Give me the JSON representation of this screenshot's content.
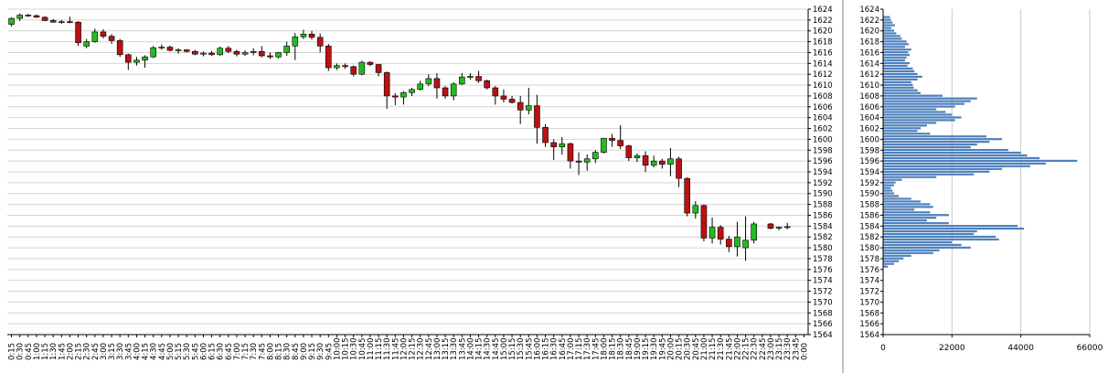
{
  "chart_data": [
    {
      "type": "candlestick",
      "price_axis": {
        "min": 1564,
        "max": 1624,
        "step": 2,
        "position": "right"
      },
      "time_labels": [
        "0:15",
        "0:30",
        "0:45",
        "1:00",
        "1:15",
        "1:30",
        "1:45",
        "2:00",
        "2:15",
        "2:30",
        "2:45",
        "3:00",
        "3:15",
        "3:30",
        "3:45",
        "4:00",
        "4:15",
        "4:30",
        "4:45",
        "5:00",
        "5:15",
        "5:30",
        "5:45",
        "6:00",
        "6:15",
        "6:30",
        "6:45",
        "7:00",
        "7:15",
        "7:30",
        "7:45",
        "8:00",
        "8:15",
        "8:30",
        "8:45",
        "9:00",
        "9:15",
        "9:30",
        "9:45",
        "10:00",
        "10:15",
        "10:30",
        "10:45",
        "11:00",
        "11:15",
        "11:30",
        "11:45",
        "12:00",
        "12:15",
        "12:30",
        "12:45",
        "13:00",
        "13:15",
        "13:30",
        "13:45",
        "14:00",
        "14:15",
        "14:30",
        "14:45",
        "15:00",
        "15:15",
        "15:30",
        "15:45",
        "16:00",
        "16:15",
        "16:30",
        "16:45",
        "17:00",
        "17:15",
        "17:30",
        "17:45",
        "18:00",
        "18:15",
        "18:30",
        "18:45",
        "19:00",
        "19:15",
        "19:30",
        "19:45",
        "20:00",
        "20:15",
        "20:30",
        "20:45",
        "21:00",
        "21:15",
        "21:30",
        "21:45",
        "22:00",
        "22:15",
        "22:30",
        "22:45",
        "23:00",
        "23:15",
        "23:30",
        "23:45",
        "0:00"
      ],
      "candles": [
        {
          "o": 1621.2,
          "h": 1622.5,
          "l": 1620.8,
          "c": 1622.3
        },
        {
          "o": 1622.3,
          "h": 1623.2,
          "l": 1621.8,
          "c": 1622.9
        },
        {
          "o": 1622.9,
          "h": 1623.1,
          "l": 1622.6,
          "c": 1622.8
        },
        {
          "o": 1622.8,
          "h": 1623.0,
          "l": 1622.4,
          "c": 1622.5
        },
        {
          "o": 1622.5,
          "h": 1622.7,
          "l": 1621.8,
          "c": 1621.9
        },
        {
          "o": 1621.9,
          "h": 1622.2,
          "l": 1621.5,
          "c": 1621.6
        },
        {
          "o": 1621.6,
          "h": 1622.0,
          "l": 1621.3,
          "c": 1621.7
        },
        {
          "o": 1621.7,
          "h": 1622.6,
          "l": 1621.4,
          "c": 1621.6
        },
        {
          "o": 1621.6,
          "h": 1621.8,
          "l": 1617.2,
          "c": 1617.8
        },
        {
          "o": 1617.2,
          "h": 1618.5,
          "l": 1616.8,
          "c": 1618.0
        },
        {
          "o": 1618.0,
          "h": 1620.4,
          "l": 1617.8,
          "c": 1619.8
        },
        {
          "o": 1619.8,
          "h": 1620.3,
          "l": 1618.6,
          "c": 1619.0
        },
        {
          "o": 1619.0,
          "h": 1619.4,
          "l": 1617.6,
          "c": 1618.2
        },
        {
          "o": 1618.2,
          "h": 1618.5,
          "l": 1615.2,
          "c": 1615.6
        },
        {
          "o": 1615.6,
          "h": 1615.8,
          "l": 1612.8,
          "c": 1614.2
        },
        {
          "o": 1614.2,
          "h": 1615.2,
          "l": 1613.6,
          "c": 1614.6
        },
        {
          "o": 1614.6,
          "h": 1615.5,
          "l": 1613.2,
          "c": 1615.2
        },
        {
          "o": 1615.2,
          "h": 1617.2,
          "l": 1615.0,
          "c": 1616.9
        },
        {
          "o": 1616.9,
          "h": 1617.5,
          "l": 1616.5,
          "c": 1617.0
        },
        {
          "o": 1617.0,
          "h": 1617.3,
          "l": 1616.2,
          "c": 1616.4
        },
        {
          "o": 1616.4,
          "h": 1616.8,
          "l": 1615.8,
          "c": 1616.5
        },
        {
          "o": 1616.5,
          "h": 1616.6,
          "l": 1616.0,
          "c": 1616.2
        },
        {
          "o": 1616.2,
          "h": 1616.5,
          "l": 1615.5,
          "c": 1615.7
        },
        {
          "o": 1615.7,
          "h": 1616.2,
          "l": 1615.3,
          "c": 1615.9
        },
        {
          "o": 1615.9,
          "h": 1616.3,
          "l": 1615.4,
          "c": 1615.6
        },
        {
          "o": 1615.6,
          "h": 1617.1,
          "l": 1615.4,
          "c": 1616.8
        },
        {
          "o": 1616.8,
          "h": 1617.2,
          "l": 1615.9,
          "c": 1616.2
        },
        {
          "o": 1616.2,
          "h": 1616.5,
          "l": 1615.3,
          "c": 1615.7
        },
        {
          "o": 1615.7,
          "h": 1616.4,
          "l": 1615.4,
          "c": 1616.0
        },
        {
          "o": 1616.0,
          "h": 1616.8,
          "l": 1615.5,
          "c": 1616.2
        },
        {
          "o": 1616.2,
          "h": 1617.2,
          "l": 1615.1,
          "c": 1615.4
        },
        {
          "o": 1615.4,
          "h": 1616.0,
          "l": 1614.8,
          "c": 1615.2
        },
        {
          "o": 1615.2,
          "h": 1616.1,
          "l": 1614.9,
          "c": 1616.0
        },
        {
          "o": 1616.0,
          "h": 1618.0,
          "l": 1615.4,
          "c": 1617.2
        },
        {
          "o": 1617.2,
          "h": 1619.6,
          "l": 1614.6,
          "c": 1618.9
        },
        {
          "o": 1618.9,
          "h": 1620.2,
          "l": 1618.5,
          "c": 1619.4
        },
        {
          "o": 1619.4,
          "h": 1620.0,
          "l": 1618.4,
          "c": 1618.8
        },
        {
          "o": 1618.8,
          "h": 1619.5,
          "l": 1616.0,
          "c": 1617.2
        },
        {
          "o": 1617.2,
          "h": 1617.6,
          "l": 1612.6,
          "c": 1613.2
        },
        {
          "o": 1613.2,
          "h": 1614.0,
          "l": 1612.8,
          "c": 1613.6
        },
        {
          "o": 1613.6,
          "h": 1614.0,
          "l": 1613.0,
          "c": 1613.4
        },
        {
          "o": 1613.4,
          "h": 1613.6,
          "l": 1611.6,
          "c": 1612.0
        },
        {
          "o": 1612.0,
          "h": 1614.5,
          "l": 1611.8,
          "c": 1614.2
        },
        {
          "o": 1614.2,
          "h": 1614.4,
          "l": 1613.5,
          "c": 1613.8
        },
        {
          "o": 1613.8,
          "h": 1613.9,
          "l": 1611.6,
          "c": 1612.3
        },
        {
          "o": 1612.3,
          "h": 1612.5,
          "l": 1605.6,
          "c": 1608.0
        },
        {
          "o": 1608.0,
          "h": 1608.5,
          "l": 1606.3,
          "c": 1607.8
        },
        {
          "o": 1607.8,
          "h": 1608.9,
          "l": 1606.4,
          "c": 1608.6
        },
        {
          "o": 1608.6,
          "h": 1609.5,
          "l": 1608.0,
          "c": 1609.2
        },
        {
          "o": 1609.2,
          "h": 1610.8,
          "l": 1609.0,
          "c": 1610.2
        },
        {
          "o": 1610.2,
          "h": 1612.0,
          "l": 1609.8,
          "c": 1611.2
        },
        {
          "o": 1611.2,
          "h": 1612.2,
          "l": 1607.5,
          "c": 1609.5
        },
        {
          "o": 1609.5,
          "h": 1609.8,
          "l": 1607.5,
          "c": 1608.0
        },
        {
          "o": 1608.0,
          "h": 1610.5,
          "l": 1607.2,
          "c": 1610.2
        },
        {
          "o": 1610.2,
          "h": 1612.2,
          "l": 1610.0,
          "c": 1611.5
        },
        {
          "o": 1611.5,
          "h": 1612.2,
          "l": 1611.0,
          "c": 1611.6
        },
        {
          "o": 1611.6,
          "h": 1612.6,
          "l": 1610.4,
          "c": 1610.8
        },
        {
          "o": 1610.8,
          "h": 1611.0,
          "l": 1609.2,
          "c": 1609.5
        },
        {
          "o": 1609.5,
          "h": 1609.8,
          "l": 1606.4,
          "c": 1608.0
        },
        {
          "o": 1608.0,
          "h": 1609.2,
          "l": 1606.8,
          "c": 1607.4
        },
        {
          "o": 1607.4,
          "h": 1608.0,
          "l": 1606.6,
          "c": 1606.8
        },
        {
          "o": 1606.8,
          "h": 1608.0,
          "l": 1602.8,
          "c": 1605.4
        },
        {
          "o": 1605.4,
          "h": 1609.5,
          "l": 1604.6,
          "c": 1606.2
        },
        {
          "o": 1606.2,
          "h": 1608.2,
          "l": 1599.2,
          "c": 1602.2
        },
        {
          "o": 1602.2,
          "h": 1602.8,
          "l": 1598.6,
          "c": 1599.4
        },
        {
          "o": 1599.4,
          "h": 1600.0,
          "l": 1596.2,
          "c": 1598.6
        },
        {
          "o": 1598.6,
          "h": 1600.4,
          "l": 1597.2,
          "c": 1599.2
        },
        {
          "o": 1599.2,
          "h": 1599.4,
          "l": 1594.6,
          "c": 1596.0
        },
        {
          "o": 1596.0,
          "h": 1597.6,
          "l": 1593.4,
          "c": 1595.8
        },
        {
          "o": 1595.8,
          "h": 1597.2,
          "l": 1594.2,
          "c": 1596.4
        },
        {
          "o": 1596.4,
          "h": 1598.0,
          "l": 1595.6,
          "c": 1597.6
        },
        {
          "o": 1597.6,
          "h": 1600.2,
          "l": 1597.4,
          "c": 1600.2
        },
        {
          "o": 1600.2,
          "h": 1601.0,
          "l": 1598.6,
          "c": 1599.8
        },
        {
          "o": 1599.8,
          "h": 1602.6,
          "l": 1598.2,
          "c": 1598.8
        },
        {
          "o": 1598.8,
          "h": 1599.0,
          "l": 1596.0,
          "c": 1596.6
        },
        {
          "o": 1596.6,
          "h": 1597.4,
          "l": 1595.8,
          "c": 1597.0
        },
        {
          "o": 1597.0,
          "h": 1597.8,
          "l": 1594.0,
          "c": 1595.2
        },
        {
          "o": 1595.2,
          "h": 1597.0,
          "l": 1594.8,
          "c": 1596.0
        },
        {
          "o": 1596.0,
          "h": 1596.4,
          "l": 1594.6,
          "c": 1595.4
        },
        {
          "o": 1595.4,
          "h": 1598.4,
          "l": 1593.2,
          "c": 1596.4
        },
        {
          "o": 1596.4,
          "h": 1596.8,
          "l": 1591.2,
          "c": 1592.8
        },
        {
          "o": 1592.8,
          "h": 1593.0,
          "l": 1585.8,
          "c": 1586.4
        },
        {
          "o": 1586.4,
          "h": 1588.6,
          "l": 1585.4,
          "c": 1587.8
        },
        {
          "o": 1587.8,
          "h": 1588.0,
          "l": 1581.2,
          "c": 1581.8
        },
        {
          "o": 1581.8,
          "h": 1585.6,
          "l": 1580.8,
          "c": 1583.8
        },
        {
          "o": 1583.8,
          "h": 1584.2,
          "l": 1580.6,
          "c": 1581.6
        },
        {
          "o": 1581.6,
          "h": 1582.2,
          "l": 1579.2,
          "c": 1580.2
        },
        {
          "o": 1580.2,
          "h": 1584.8,
          "l": 1578.4,
          "c": 1582.0
        },
        {
          "o": 1580.0,
          "h": 1585.8,
          "l": 1577.6,
          "c": 1581.4
        },
        {
          "o": 1581.4,
          "h": 1584.8,
          "l": 1580.8,
          "c": 1584.4
        },
        null,
        {
          "o": 1584.4,
          "h": 1584.6,
          "l": 1583.4,
          "c": 1583.6
        },
        {
          "o": 1583.6,
          "h": 1583.9,
          "l": 1583.2,
          "c": 1583.8
        },
        {
          "o": 1583.8,
          "h": 1584.6,
          "l": 1583.4,
          "c": 1583.9
        },
        null,
        null
      ],
      "volume": [
        0,
        0,
        0,
        0,
        0,
        0,
        0,
        0,
        0.35,
        0,
        0,
        0,
        0,
        0,
        0,
        0,
        0,
        0,
        0,
        0,
        0,
        0,
        0,
        0,
        0,
        0,
        0,
        0,
        0,
        0,
        0,
        0,
        0,
        0,
        0,
        0,
        0,
        0,
        0,
        0,
        0,
        0.3,
        0,
        0,
        0,
        0,
        0,
        0,
        0,
        0,
        0,
        0,
        0,
        0,
        0,
        0,
        0,
        0,
        0,
        0,
        0,
        0,
        0,
        0,
        0,
        0,
        0,
        0,
        0,
        0,
        0,
        0,
        0,
        0,
        0,
        0,
        0,
        0,
        0,
        0,
        0,
        0,
        0,
        0,
        0,
        0,
        0,
        0,
        0,
        0,
        0,
        0,
        0,
        0,
        0,
        0
      ],
      "colors": {
        "up": "#22bb22",
        "down": "#bb1111",
        "wick": "#000000",
        "volume": "#4f81bd",
        "grid": "#d4d4d4"
      }
    },
    {
      "type": "bar",
      "orientation": "horizontal",
      "title": "",
      "price_levels": {
        "min": 1564,
        "max": 1624,
        "step": 0.5
      },
      "x_ticks": [
        "0",
        "22000",
        "44000",
        "66000"
      ],
      "xlim": [
        0,
        66000
      ],
      "volume_profile": [
        [
          1622.5,
          2200
        ],
        [
          1622,
          2500
        ],
        [
          1621.5,
          3000
        ],
        [
          1621,
          3800
        ],
        [
          1620.5,
          2600
        ],
        [
          1620,
          3500
        ],
        [
          1619.5,
          4200
        ],
        [
          1619,
          5500
        ],
        [
          1618.5,
          6000
        ],
        [
          1618,
          7500
        ],
        [
          1617.5,
          8200
        ],
        [
          1617,
          7000
        ],
        [
          1616.5,
          9000
        ],
        [
          1616,
          8000
        ],
        [
          1615.5,
          8500
        ],
        [
          1615,
          7500
        ],
        [
          1614.5,
          7000
        ],
        [
          1614,
          8500
        ],
        [
          1613.5,
          7800
        ],
        [
          1613,
          9500
        ],
        [
          1612.5,
          10000
        ],
        [
          1612,
          11000
        ],
        [
          1611.5,
          12500
        ],
        [
          1611,
          11000
        ],
        [
          1610.5,
          9000
        ],
        [
          1610,
          9500
        ],
        [
          1609.5,
          9800
        ],
        [
          1609,
          11000
        ],
        [
          1608.5,
          12000
        ],
        [
          1608,
          19000
        ],
        [
          1607.5,
          30000
        ],
        [
          1607,
          28000
        ],
        [
          1606.5,
          26000
        ],
        [
          1606,
          23000
        ],
        [
          1605.5,
          17000
        ],
        [
          1605,
          20000
        ],
        [
          1604.5,
          22000
        ],
        [
          1604,
          25000
        ],
        [
          1603.5,
          23000
        ],
        [
          1603,
          17000
        ],
        [
          1602.5,
          14000
        ],
        [
          1602,
          12000
        ],
        [
          1601.5,
          11000
        ],
        [
          1601,
          15000
        ],
        [
          1600.5,
          33000
        ],
        [
          1600,
          38000
        ],
        [
          1599.5,
          34000
        ],
        [
          1599,
          30000
        ],
        [
          1598.5,
          28000
        ],
        [
          1598,
          40000
        ],
        [
          1597.5,
          44000
        ],
        [
          1597,
          46000
        ],
        [
          1596.5,
          50000
        ],
        [
          1596,
          62000
        ],
        [
          1595.5,
          52000
        ],
        [
          1595,
          47000
        ],
        [
          1594.5,
          38000
        ],
        [
          1594,
          34000
        ],
        [
          1593.5,
          29000
        ],
        [
          1593,
          17000
        ],
        [
          1592.5,
          6000
        ],
        [
          1592,
          4000
        ],
        [
          1591.5,
          3500
        ],
        [
          1591,
          2500
        ],
        [
          1590.5,
          3000
        ],
        [
          1590,
          3500
        ],
        [
          1589.5,
          5000
        ],
        [
          1589,
          9000
        ],
        [
          1588.5,
          12000
        ],
        [
          1588,
          15000
        ],
        [
          1587.5,
          16000
        ],
        [
          1587,
          10000
        ],
        [
          1586.5,
          15000
        ],
        [
          1586,
          21000
        ],
        [
          1585.5,
          17000
        ],
        [
          1585,
          14000
        ],
        [
          1584.5,
          21000
        ],
        [
          1584,
          43000
        ],
        [
          1583.5,
          45000
        ],
        [
          1583,
          30000
        ],
        [
          1582.5,
          29000
        ],
        [
          1582,
          36000
        ],
        [
          1581.5,
          37000
        ],
        [
          1581,
          22000
        ],
        [
          1580.5,
          25000
        ],
        [
          1580,
          28000
        ],
        [
          1579.5,
          18000
        ],
        [
          1579,
          16000
        ],
        [
          1578.5,
          9000
        ],
        [
          1578,
          6500
        ],
        [
          1577.5,
          5000
        ],
        [
          1577,
          3500
        ],
        [
          1576.5,
          1500
        ]
      ],
      "colors": {
        "bar": "#4f81bd",
        "grid": "#c8c8c8"
      }
    }
  ]
}
